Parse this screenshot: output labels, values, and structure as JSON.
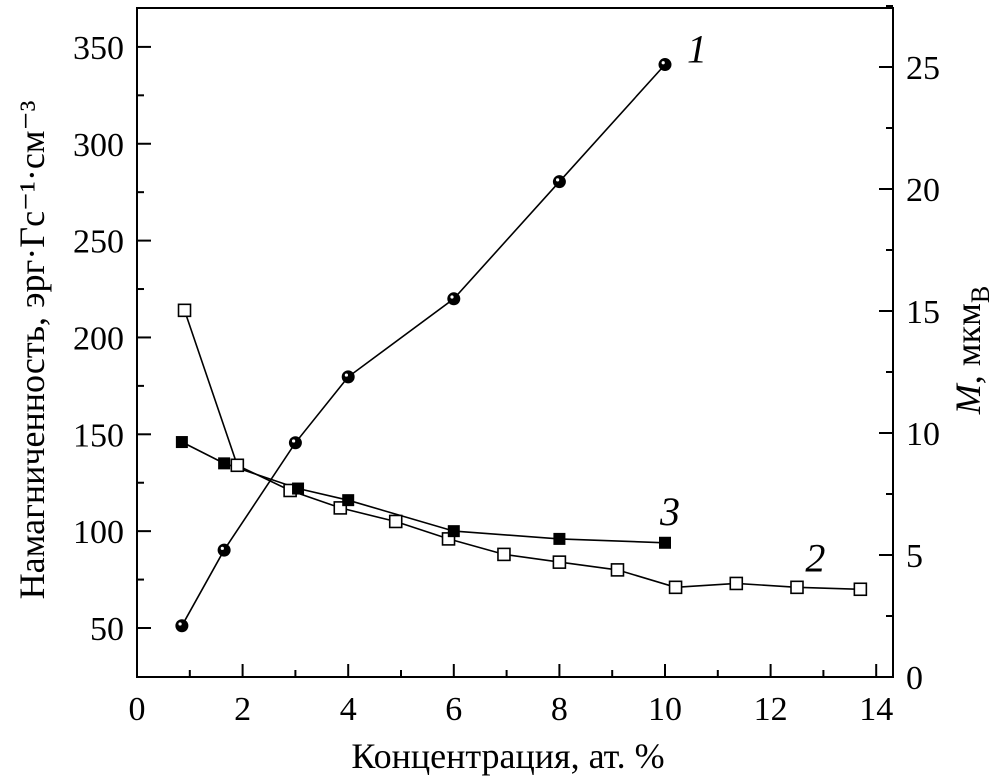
{
  "chart_data": {
    "type": "line",
    "xlabel": "Концентрация, ат. %",
    "ylabel_left": "Намагниченность, эрг·Гс⁻¹·см⁻³",
    "ylabel_right_symbol": "M",
    "ylabel_right_unit": ", мкм",
    "ylabel_right_subscript": "B",
    "xlim": [
      0,
      14.5
    ],
    "ylim_left": [
      30,
      360
    ],
    "ylim_right": [
      0,
      27.5
    ],
    "x_ticks": [
      0,
      2,
      4,
      6,
      8,
      10,
      12,
      14
    ],
    "y_left_ticks": [
      50,
      100,
      150,
      200,
      250,
      300,
      350
    ],
    "y_right_ticks": [
      0,
      5,
      10,
      15,
      20,
      25
    ],
    "grid": false,
    "legend": "none",
    "series": [
      {
        "name": "1",
        "axis": "right",
        "marker": "filled-circle",
        "x": [
          0.85,
          1.65,
          3.0,
          4.0,
          6.0,
          8.0,
          10.0
        ],
        "y": [
          2.1,
          5.2,
          9.6,
          12.3,
          15.5,
          20.3,
          25.1
        ]
      },
      {
        "name": "2",
        "axis": "left",
        "marker": "open-square",
        "x": [
          0.9,
          1.9,
          2.9,
          3.85,
          4.9,
          5.9,
          6.95,
          8.0,
          9.1,
          10.2,
          11.35,
          12.5,
          13.7
        ],
        "y": [
          214,
          134,
          121,
          112,
          105,
          96,
          88,
          84,
          80,
          71,
          73,
          71,
          70
        ]
      },
      {
        "name": "3",
        "axis": "left",
        "marker": "filled-square",
        "x": [
          0.85,
          1.65,
          3.05,
          4.0,
          6.0,
          8.0,
          10.0
        ],
        "y": [
          146,
          135,
          122,
          116,
          100,
          96,
          94
        ]
      }
    ]
  }
}
